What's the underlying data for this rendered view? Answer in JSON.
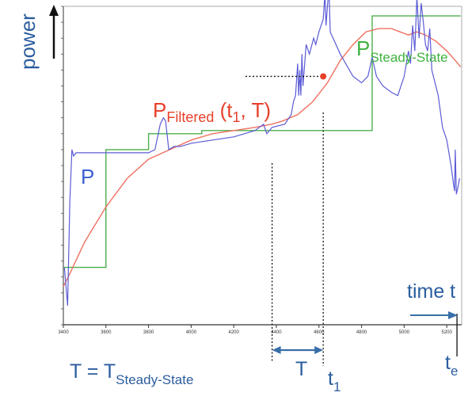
{
  "chart_data": {
    "type": "line",
    "title": "",
    "xlabel": "time t",
    "ylabel": "power",
    "xlim": [
      3400,
      5270
    ],
    "ylim": [
      0,
      100
    ],
    "x_ticks": [
      3400,
      3600,
      3800,
      4000,
      4200,
      4400,
      4600,
      4800,
      5000,
      5200
    ],
    "grid": false,
    "series": [
      {
        "name": "P",
        "color": "#5b5bd6",
        "points": [
          [
            3405,
            18
          ],
          [
            3420,
            6
          ],
          [
            3430,
            38
          ],
          [
            3440,
            55
          ],
          [
            3448,
            53
          ],
          [
            3460,
            54
          ],
          [
            3550,
            54
          ],
          [
            3700,
            54
          ],
          [
            3800,
            54
          ],
          [
            3830,
            55
          ],
          [
            3855,
            63
          ],
          [
            3870,
            65
          ],
          [
            3880,
            64
          ],
          [
            3895,
            55
          ],
          [
            3920,
            56
          ],
          [
            3950,
            56
          ],
          [
            4000,
            57
          ],
          [
            4100,
            58
          ],
          [
            4200,
            59
          ],
          [
            4300,
            61
          ],
          [
            4340,
            63
          ],
          [
            4355,
            60
          ],
          [
            4380,
            62
          ],
          [
            4440,
            63
          ],
          [
            4470,
            66
          ],
          [
            4480,
            70
          ],
          [
            4490,
            72
          ],
          [
            4500,
            82
          ],
          [
            4505,
            72
          ],
          [
            4510,
            80
          ],
          [
            4515,
            72
          ],
          [
            4520,
            85
          ],
          [
            4525,
            75
          ],
          [
            4540,
            88
          ],
          [
            4555,
            85
          ],
          [
            4575,
            90
          ],
          [
            4585,
            88
          ],
          [
            4600,
            92
          ],
          [
            4620,
            96
          ],
          [
            4628,
            104
          ],
          [
            4633,
            94
          ],
          [
            4640,
            100
          ],
          [
            4647,
            106
          ],
          [
            4653,
            92
          ],
          [
            4700,
            85
          ],
          [
            4760,
            78
          ],
          [
            4800,
            76
          ],
          [
            4830,
            78
          ],
          [
            4850,
            84
          ],
          [
            4870,
            78
          ],
          [
            4900,
            75
          ],
          [
            4940,
            73
          ],
          [
            4970,
            72
          ],
          [
            5000,
            78
          ],
          [
            5020,
            86
          ],
          [
            5030,
            82
          ],
          [
            5040,
            94
          ],
          [
            5050,
            86
          ],
          [
            5060,
            103
          ],
          [
            5070,
            90
          ],
          [
            5080,
            101
          ],
          [
            5090,
            95
          ],
          [
            5100,
            88
          ],
          [
            5110,
            86
          ],
          [
            5120,
            93
          ],
          [
            5130,
            80
          ],
          [
            5160,
            72
          ],
          [
            5180,
            62
          ],
          [
            5200,
            58
          ],
          [
            5220,
            50
          ],
          [
            5232,
            44
          ],
          [
            5237,
            42
          ],
          [
            5240,
            55
          ],
          [
            5245,
            41
          ],
          [
            5255,
            44
          ],
          [
            5260,
            46
          ]
        ]
      },
      {
        "name": "P Filtered",
        "color": "#f07060",
        "points": [
          [
            3400,
            12
          ],
          [
            3430,
            16
          ],
          [
            3500,
            26
          ],
          [
            3600,
            37
          ],
          [
            3700,
            46
          ],
          [
            3800,
            52
          ],
          [
            3900,
            55
          ],
          [
            4000,
            58
          ],
          [
            4100,
            60
          ],
          [
            4200,
            61
          ],
          [
            4300,
            62
          ],
          [
            4380,
            63
          ],
          [
            4430,
            64
          ],
          [
            4500,
            66
          ],
          [
            4570,
            70
          ],
          [
            4640,
            76
          ],
          [
            4700,
            83
          ],
          [
            4760,
            88
          ],
          [
            4820,
            92
          ],
          [
            4880,
            93
          ],
          [
            4940,
            93
          ],
          [
            4980,
            92
          ],
          [
            5020,
            91
          ],
          [
            5060,
            92
          ],
          [
            5100,
            91
          ],
          [
            5150,
            89
          ],
          [
            5200,
            86
          ],
          [
            5240,
            83
          ],
          [
            5265,
            81
          ]
        ]
      },
      {
        "name": "P Steady-State",
        "color": "#4caf4c",
        "points": [
          [
            3400,
            18
          ],
          [
            3600,
            18
          ],
          [
            3600,
            55
          ],
          [
            3800,
            55
          ],
          [
            3800,
            60
          ],
          [
            4050,
            60
          ],
          [
            4050,
            61
          ],
          [
            4850,
            61
          ],
          [
            4850,
            97
          ],
          [
            5265,
            97
          ]
        ]
      }
    ],
    "annotations": {
      "p_label": "P",
      "filtered_label": "P",
      "filtered_sub": "Filtered",
      "filtered_args": " (t",
      "filtered_args_sub": "1",
      "filtered_args_end": ", T)",
      "steady_label": "P",
      "steady_sub": "Steady-State",
      "ylabel_text": "power",
      "xlabel_text": "time t",
      "interval_label": "T",
      "t1_label": "t",
      "t1_sub": "1",
      "te_label": "t",
      "te_sub": "e",
      "equation_lhs": "T = T",
      "equation_sub": "Steady-State",
      "marked_point": [
        4620,
        78
      ],
      "t1_x": 4620,
      "t_start_x": 4380,
      "te_x": 5248
    },
    "colors": {
      "axis": "#333333",
      "label_blue": "#2b5d9f",
      "label_red": "#e8402a",
      "label_green": "#3fb23f",
      "arrow_blue": "#3a6fa8"
    }
  }
}
